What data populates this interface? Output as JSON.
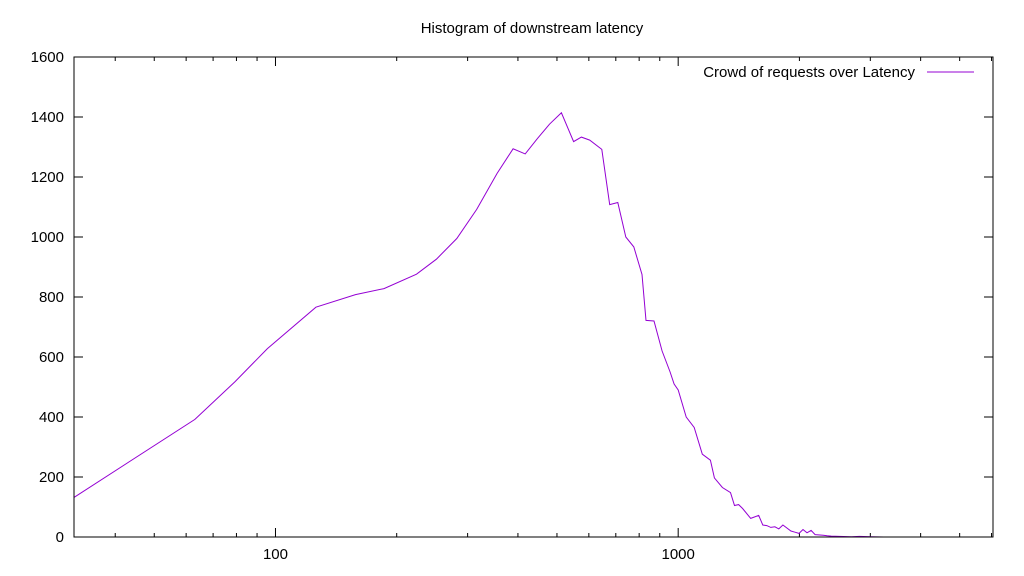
{
  "chart_data": {
    "type": "line",
    "title": "Histogram of downstream latency",
    "xlabel": "",
    "ylabel": "",
    "x_scale": "log",
    "xlim": [
      31.6,
      6050
    ],
    "ylim": [
      0,
      1600
    ],
    "x_ticks": [
      100,
      1000
    ],
    "y_ticks": [
      0,
      200,
      400,
      600,
      800,
      1000,
      1200,
      1400,
      1600
    ],
    "grid": false,
    "legend_position": "top-right",
    "series_color": "#9400d3",
    "series": [
      {
        "name": "Crowd of requests over Latency",
        "x": [
          31.6,
          63.1,
          79.4,
          95.5,
          126,
          158,
          186,
          224,
          251,
          282,
          316,
          355,
          389,
          417,
          447,
          479,
          513,
          550,
          575,
          603,
          646,
          676,
          708,
          741,
          776,
          813,
          832,
          871,
          912,
          955,
          977,
          1000,
          1047,
          1096,
          1148,
          1202,
          1230,
          1288,
          1349,
          1380,
          1413,
          1445,
          1514,
          1585,
          1622,
          1660,
          1698,
          1738,
          1778,
          1820,
          1905,
          1950,
          1995,
          2042,
          2089,
          2138,
          2188,
          2291,
          2344,
          2399,
          2512,
          2692,
          2818,
          3020,
          3236
        ],
        "y": [
          132,
          392,
          518,
          628,
          766,
          808,
          828,
          876,
          926,
          995,
          1092,
          1212,
          1294,
          1277,
          1328,
          1376,
          1414,
          1318,
          1333,
          1323,
          1292,
          1108,
          1115,
          1000,
          967,
          875,
          722,
          720,
          620,
          550,
          510,
          490,
          400,
          365,
          276,
          256,
          197,
          165,
          148,
          105,
          108,
          95,
          62,
          72,
          40,
          38,
          32,
          34,
          27,
          40,
          20,
          16,
          12,
          25,
          14,
          22,
          8,
          6,
          4,
          3,
          2,
          1,
          2,
          1,
          0
        ]
      }
    ]
  }
}
